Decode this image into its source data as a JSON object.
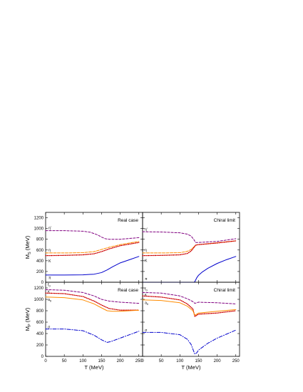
{
  "chart_data": [
    {
      "type": "line",
      "panel": "top-left",
      "annotation": "Real case",
      "ylabel": "M_S (MeV)",
      "ylabel_main": "M",
      "ylabel_sub": "S",
      "ylabel_unit": " (MeV)",
      "xlim": [
        0,
        260
      ],
      "ylim": [
        0,
        1300
      ],
      "yticks": [
        0,
        200,
        400,
        600,
        800,
        1000,
        1200
      ],
      "xticks": [],
      "series": [
        {
          "name": "η′",
          "color": "#800080",
          "dash": "3,2",
          "width": 1.0,
          "x": [
            0,
            50,
            100,
            120,
            140,
            150,
            160,
            170,
            200,
            250
          ],
          "y": [
            960,
            960,
            950,
            930,
            880,
            840,
            810,
            800,
            800,
            830
          ]
        },
        {
          "name": "η",
          "color": "#ff8c00",
          "dash": "4,1.5",
          "width": 1.0,
          "x": [
            0,
            50,
            100,
            130,
            150,
            170,
            200,
            250
          ],
          "y": [
            545,
            545,
            550,
            570,
            610,
            650,
            700,
            760
          ]
        },
        {
          "name": "K",
          "color": "#cc0000",
          "dash": "1,1.5",
          "width": 1.3,
          "x": [
            0,
            50,
            100,
            130,
            150,
            170,
            200,
            250
          ],
          "y": [
            495,
            500,
            510,
            530,
            570,
            620,
            680,
            740
          ]
        },
        {
          "name": "π",
          "color": "#0000cc",
          "dash": "",
          "width": 1.0,
          "x": [
            0,
            50,
            100,
            130,
            150,
            165,
            180,
            200,
            225,
            250
          ],
          "y": [
            135,
            135,
            138,
            150,
            180,
            230,
            290,
            360,
            420,
            480
          ]
        }
      ],
      "labels": [
        {
          "text": "η′",
          "x": 8,
          "y": 990
        },
        {
          "text": "η",
          "x": 8,
          "y": 575
        },
        {
          "text": "K",
          "x": 8,
          "y": 370
        },
        {
          "text": "π",
          "x": 8,
          "y": 60
        }
      ]
    },
    {
      "type": "line",
      "panel": "top-right",
      "annotation": "Chiral limit",
      "xlim": [
        0,
        260
      ],
      "ylim": [
        0,
        1300
      ],
      "yticks": [],
      "xticks": [],
      "series": [
        {
          "name": "η′",
          "color": "#800080",
          "dash": "3,2",
          "width": 1.0,
          "x": [
            0,
            50,
            100,
            120,
            130,
            138,
            142,
            150,
            200,
            250
          ],
          "y": [
            940,
            935,
            920,
            895,
            860,
            790,
            740,
            740,
            760,
            810
          ]
        },
        {
          "name": "η",
          "color": "#ff8c00",
          "dash": "4,1.5",
          "width": 1.0,
          "x": [
            0,
            50,
            100,
            120,
            130,
            138,
            142,
            150,
            200,
            250
          ],
          "y": [
            545,
            545,
            550,
            575,
            610,
            660,
            690,
            700,
            735,
            770
          ]
        },
        {
          "name": "K",
          "color": "#cc0000",
          "dash": "1,1.5",
          "width": 1.3,
          "x": [
            0,
            50,
            100,
            120,
            130,
            138,
            142,
            150,
            200,
            250
          ],
          "y": [
            495,
            500,
            510,
            535,
            580,
            650,
            690,
            700,
            730,
            770
          ]
        },
        {
          "name": "π",
          "color": "#0000cc",
          "dash": "",
          "width": 1.0,
          "x": [
            0,
            100,
            138,
            140,
            145,
            150,
            160,
            175,
            200,
            225,
            250
          ],
          "y": [
            0,
            0,
            0,
            10,
            80,
            130,
            190,
            260,
            350,
            420,
            480
          ]
        }
      ],
      "labels": [
        {
          "text": "η′",
          "x": 6,
          "y": 960
        },
        {
          "text": "η",
          "x": 6,
          "y": 575
        },
        {
          "text": "K",
          "x": 6,
          "y": 380
        },
        {
          "text": "π",
          "x": 6,
          "y": 40
        }
      ]
    },
    {
      "type": "line",
      "panel": "bottom-left",
      "annotation": "Real case",
      "ylabel": "M_P (MeV)",
      "ylabel_main": "M",
      "ylabel_sub": "P",
      "ylabel_unit": " (MeV)",
      "xlabel": "T (MeV)",
      "xlim": [
        0,
        260
      ],
      "ylim": [
        0,
        1300
      ],
      "yticks": [
        0,
        200,
        400,
        600,
        800,
        1000,
        1200
      ],
      "xticks": [
        0,
        50,
        100,
        150,
        200,
        250
      ],
      "series": [
        {
          "name": "f0",
          "color": "#800080",
          "dash": "3,2",
          "width": 1.0,
          "x": [
            0,
            50,
            100,
            130,
            150,
            170,
            200,
            250
          ],
          "y": [
            1170,
            1160,
            1120,
            1060,
            1000,
            970,
            950,
            930
          ]
        },
        {
          "name": "κ",
          "color": "#cc0000",
          "dash": "1,1.5",
          "width": 1.3,
          "x": [
            0,
            50,
            100,
            130,
            150,
            170,
            200,
            250
          ],
          "y": [
            1110,
            1100,
            1050,
            970,
            900,
            840,
            810,
            810
          ]
        },
        {
          "name": "a0",
          "color": "#ff8c00",
          "dash": "",
          "width": 1.0,
          "x": [
            0,
            50,
            100,
            130,
            150,
            165,
            180,
            200,
            250
          ],
          "y": [
            1040,
            1030,
            990,
            920,
            850,
            800,
            790,
            790,
            810
          ]
        },
        {
          "name": "σ",
          "color": "#0000cc",
          "dash": "5,2,1,2",
          "width": 1.0,
          "x": [
            0,
            50,
            100,
            130,
            150,
            165,
            175,
            200,
            250
          ],
          "y": [
            480,
            480,
            450,
            370,
            290,
            245,
            260,
            320,
            440
          ]
        }
      ],
      "labels": [
        {
          "text": "f",
          "sub": "0",
          "x": 6,
          "y": 1235
        },
        {
          "text": "κ",
          "x": 6,
          "y": 1120
        },
        {
          "text": "a",
          "sub": "0",
          "x": 6,
          "y": 975
        },
        {
          "text": "σ",
          "x": 6,
          "y": 495
        }
      ]
    },
    {
      "type": "line",
      "panel": "bottom-right",
      "annotation": "Chiral limit",
      "xlabel": "T (MeV)",
      "xlim": [
        0,
        260
      ],
      "ylim": [
        0,
        1300
      ],
      "yticks": [],
      "xticks": [
        0,
        50,
        100,
        150,
        200,
        250
      ],
      "series": [
        {
          "name": "f0",
          "color": "#800080",
          "dash": "3,2",
          "width": 1.0,
          "x": [
            0,
            50,
            100,
            120,
            135,
            140,
            145,
            150,
            200,
            250
          ],
          "y": [
            1120,
            1110,
            1060,
            1010,
            960,
            930,
            940,
            950,
            940,
            920
          ]
        },
        {
          "name": "κ",
          "color": "#cc0000",
          "dash": "1,1.5",
          "width": 1.3,
          "x": [
            0,
            50,
            100,
            120,
            135,
            140,
            145,
            150,
            200,
            250
          ],
          "y": [
            1060,
            1040,
            990,
            920,
            830,
            700,
            720,
            740,
            760,
            800
          ]
        },
        {
          "name": "a0",
          "color": "#ff8c00",
          "dash": "",
          "width": 1.0,
          "x": [
            0,
            50,
            100,
            120,
            135,
            140,
            145,
            150,
            200,
            250
          ],
          "y": [
            990,
            980,
            940,
            880,
            800,
            720,
            740,
            760,
            790,
            820
          ]
        },
        {
          "name": "σ",
          "color": "#0000cc",
          "dash": "5,2,1,2",
          "width": 1.0,
          "x": [
            0,
            50,
            100,
            120,
            130,
            140,
            145,
            150,
            175,
            200,
            250
          ],
          "y": [
            420,
            420,
            380,
            300,
            210,
            40,
            60,
            110,
            230,
            320,
            460
          ]
        }
      ],
      "labels": [
        {
          "text": "f",
          "sub": "0",
          "x": 6,
          "y": 1160
        },
        {
          "text": "κ",
          "x": 6,
          "y": 1060
        },
        {
          "text": "a",
          "sub": "0",
          "x": 6,
          "y": 920
        },
        {
          "text": "σ",
          "x": 6,
          "y": 435
        }
      ]
    }
  ]
}
